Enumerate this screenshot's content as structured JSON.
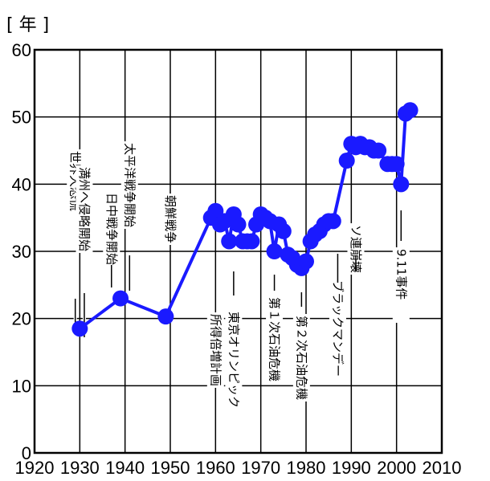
{
  "chart_data": {
    "type": "line",
    "title": "",
    "ylabel": "[ 年 ]",
    "xlabel": "",
    "xlim": [
      1920,
      2010
    ],
    "ylim": [
      0,
      60
    ],
    "grid": true,
    "x_ticks": [
      1920,
      1930,
      1940,
      1950,
      1960,
      1970,
      1980,
      1990,
      2000,
      2010
    ],
    "y_ticks": [
      0,
      10,
      20,
      30,
      40,
      50,
      60
    ],
    "x_tick_labels": [
      "1920",
      "1930",
      "1940",
      "1950",
      "1960",
      "1970",
      "1980",
      "1990",
      "2000",
      "2010"
    ],
    "y_tick_labels": [
      "0",
      "10",
      "20",
      "30",
      "40",
      "50",
      "60"
    ],
    "series_color": "#1a1aff",
    "series": [
      {
        "x": [
          1930,
          1939,
          1949,
          1959,
          1960,
          1961,
          1962,
          1963,
          1964,
          1965,
          1966,
          1967,
          1968,
          1969,
          1970,
          1971,
          1972,
          1973,
          1974,
          1975,
          1976,
          1977,
          1978,
          1979,
          1980,
          1981,
          1982,
          1983,
          1984,
          1985,
          1986,
          1989,
          1990,
          1991,
          1992,
          1993,
          1994,
          1995,
          1996,
          1998,
          1999,
          2000,
          2001,
          2002,
          2003
        ],
        "y": [
          18.5,
          23,
          20.3,
          35,
          36,
          34,
          34.5,
          31.5,
          35.5,
          34,
          31.5,
          31.5,
          31.5,
          34,
          35.5,
          35,
          34.5,
          30,
          34,
          33,
          29.5,
          29,
          28,
          27.5,
          28.5,
          31.5,
          32.5,
          33,
          34,
          34.5,
          34.5,
          43.5,
          46,
          45.5,
          46,
          45.5,
          45.5,
          45,
          45,
          43,
          43,
          43,
          40,
          50.5,
          51
        ]
      }
    ],
    "annotations": [
      {
        "x": 1929,
        "text": "世界大恐慌"
      },
      {
        "x": 1931,
        "text": "満州へ侵略開始"
      },
      {
        "x": 1937,
        "text": "日中戦争開始"
      },
      {
        "x": 1941,
        "text": "太平洋戦争開始"
      },
      {
        "x": 1950,
        "text": "朝鮮戦争"
      },
      {
        "x": 1960,
        "text": "所得倍増計画"
      },
      {
        "x": 1964,
        "text": "東京オリンピック"
      },
      {
        "x": 1973,
        "text": "第１次石油危機"
      },
      {
        "x": 1979,
        "text": "第２次石油危機"
      },
      {
        "x": 1987,
        "text": "ブラックマンデー"
      },
      {
        "x": 1991,
        "text": "ソ連崩壊"
      },
      {
        "x": 2001,
        "text": "9.11事件"
      }
    ]
  }
}
